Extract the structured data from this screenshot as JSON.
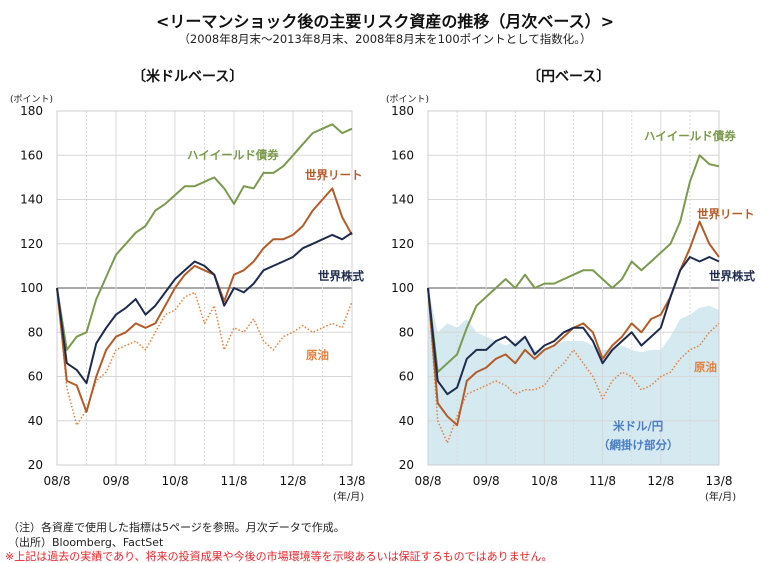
{
  "title": "<リーマンショック後の主要リスク資産の推移（月次ベース）>",
  "subtitle": "（2008年8月末～2013年8月末、2008年8月末を100ポイントとして指数化。）",
  "notes": {
    "note": "（注）各資産で使用した指標は5ページを参照。月次データで作成。",
    "source": "（出所）Bloomberg、FactSet",
    "disclaimer": "※上記は過去の実績であり、将来の投資成果や今後の市場環境等を示唆あるいは保証するものではありません。"
  },
  "colors": {
    "high_yield": "#7b9a4f",
    "reit": "#b25c2a",
    "stocks": "#1e2b4c",
    "oil": "#e3813f",
    "usdjpy_shade": "#d5e9f1",
    "usdjpy_label": "#4a7fc4",
    "baseline": "#777777",
    "grid": "#d8d8d8"
  },
  "chart_data": [
    {
      "type": "line",
      "title": "〔米ドルベース〕",
      "ylabel": "(ポイント)",
      "xlabel": "(年/月)",
      "ylim": [
        20,
        180
      ],
      "yticks": [
        "20",
        "40",
        "60",
        "80",
        "100",
        "120",
        "140",
        "160",
        "180"
      ],
      "xticks": [
        "08/8",
        "09/8",
        "10/8",
        "11/8",
        "12/8",
        "13/8"
      ],
      "grid": true,
      "x": [
        "2008-08",
        "2008-10",
        "2008-12",
        "2009-02",
        "2009-04",
        "2009-06",
        "2009-08",
        "2009-10",
        "2009-12",
        "2010-02",
        "2010-04",
        "2010-06",
        "2010-08",
        "2010-10",
        "2010-12",
        "2011-02",
        "2011-04",
        "2011-06",
        "2011-08",
        "2011-10",
        "2011-12",
        "2012-02",
        "2012-04",
        "2012-06",
        "2012-08",
        "2012-10",
        "2012-12",
        "2013-02",
        "2013-04",
        "2013-06",
        "2013-08"
      ],
      "series": [
        {
          "name": "ハイイールド債券",
          "key": "high_yield",
          "values": [
            100,
            72,
            78,
            80,
            95,
            105,
            115,
            120,
            125,
            128,
            135,
            138,
            142,
            146,
            146,
            148,
            150,
            145,
            138,
            146,
            145,
            152,
            152,
            155,
            160,
            165,
            170,
            172,
            174,
            170,
            172
          ]
        },
        {
          "name": "世界リート",
          "key": "reit",
          "values": [
            100,
            58,
            56,
            44,
            60,
            72,
            78,
            80,
            84,
            82,
            84,
            92,
            100,
            106,
            110,
            108,
            106,
            94,
            106,
            108,
            112,
            118,
            122,
            122,
            124,
            128,
            135,
            140,
            145,
            132,
            124
          ]
        },
        {
          "name": "世界株式",
          "key": "stocks",
          "values": [
            100,
            66,
            63,
            57,
            75,
            82,
            88,
            91,
            95,
            88,
            92,
            98,
            104,
            108,
            112,
            110,
            106,
            92,
            100,
            98,
            102,
            108,
            110,
            112,
            114,
            118,
            120,
            122,
            124,
            122,
            125
          ]
        },
        {
          "name": "原油",
          "key": "oil",
          "values": [
            100,
            55,
            38,
            45,
            58,
            62,
            72,
            74,
            76,
            72,
            80,
            88,
            90,
            96,
            98,
            84,
            92,
            72,
            82,
            80,
            86,
            76,
            72,
            78,
            80,
            83,
            80,
            82,
            84,
            82,
            94
          ]
        }
      ]
    },
    {
      "type": "line",
      "title": "〔円ベース〕",
      "ylabel": "(ポイント)",
      "xlabel": "(年/月)",
      "ylim": [
        20,
        180
      ],
      "yticks": [
        "20",
        "40",
        "60",
        "80",
        "100",
        "120",
        "140",
        "160",
        "180"
      ],
      "xticks": [
        "08/8",
        "09/8",
        "10/8",
        "11/8",
        "12/8",
        "13/8"
      ],
      "grid": true,
      "x": [
        "2008-08",
        "2008-10",
        "2008-12",
        "2009-02",
        "2009-04",
        "2009-06",
        "2009-08",
        "2009-10",
        "2009-12",
        "2010-02",
        "2010-04",
        "2010-06",
        "2010-08",
        "2010-10",
        "2010-12",
        "2011-02",
        "2011-04",
        "2011-06",
        "2011-08",
        "2011-10",
        "2011-12",
        "2012-02",
        "2012-04",
        "2012-06",
        "2012-08",
        "2012-10",
        "2012-12",
        "2013-02",
        "2013-04",
        "2013-06",
        "2013-08"
      ],
      "area": {
        "name": "米ドル/円",
        "note": "（網掛け部分）",
        "values": [
          100,
          80,
          84,
          82,
          86,
          80,
          78,
          76,
          74,
          76,
          78,
          72,
          72,
          74,
          76,
          76,
          76,
          74,
          72,
          72,
          74,
          72,
          71,
          72,
          72,
          78,
          86,
          88,
          91,
          92,
          90
        ]
      },
      "series": [
        {
          "name": "ハイイールド債券",
          "key": "high_yield",
          "values": [
            100,
            62,
            66,
            70,
            82,
            92,
            96,
            100,
            104,
            100,
            106,
            100,
            102,
            102,
            104,
            106,
            108,
            108,
            104,
            100,
            104,
            112,
            108,
            112,
            116,
            120,
            130,
            148,
            160,
            156,
            155
          ]
        },
        {
          "name": "世界リート",
          "key": "reit",
          "values": [
            100,
            48,
            42,
            38,
            58,
            62,
            64,
            68,
            70,
            66,
            72,
            68,
            72,
            74,
            78,
            82,
            84,
            80,
            68,
            74,
            78,
            84,
            80,
            86,
            88,
            96,
            108,
            118,
            130,
            120,
            114
          ]
        },
        {
          "name": "世界株式",
          "key": "stocks",
          "values": [
            100,
            58,
            52,
            55,
            68,
            72,
            72,
            76,
            78,
            74,
            78,
            70,
            74,
            76,
            80,
            82,
            82,
            76,
            66,
            72,
            76,
            80,
            74,
            78,
            82,
            96,
            108,
            114,
            112,
            114,
            112
          ]
        },
        {
          "name": "原油",
          "key": "oil",
          "values": [
            100,
            40,
            30,
            42,
            52,
            54,
            56,
            58,
            56,
            52,
            54,
            54,
            56,
            62,
            66,
            72,
            66,
            60,
            50,
            58,
            62,
            60,
            54,
            56,
            60,
            62,
            68,
            72,
            74,
            80,
            84
          ]
        }
      ]
    }
  ]
}
